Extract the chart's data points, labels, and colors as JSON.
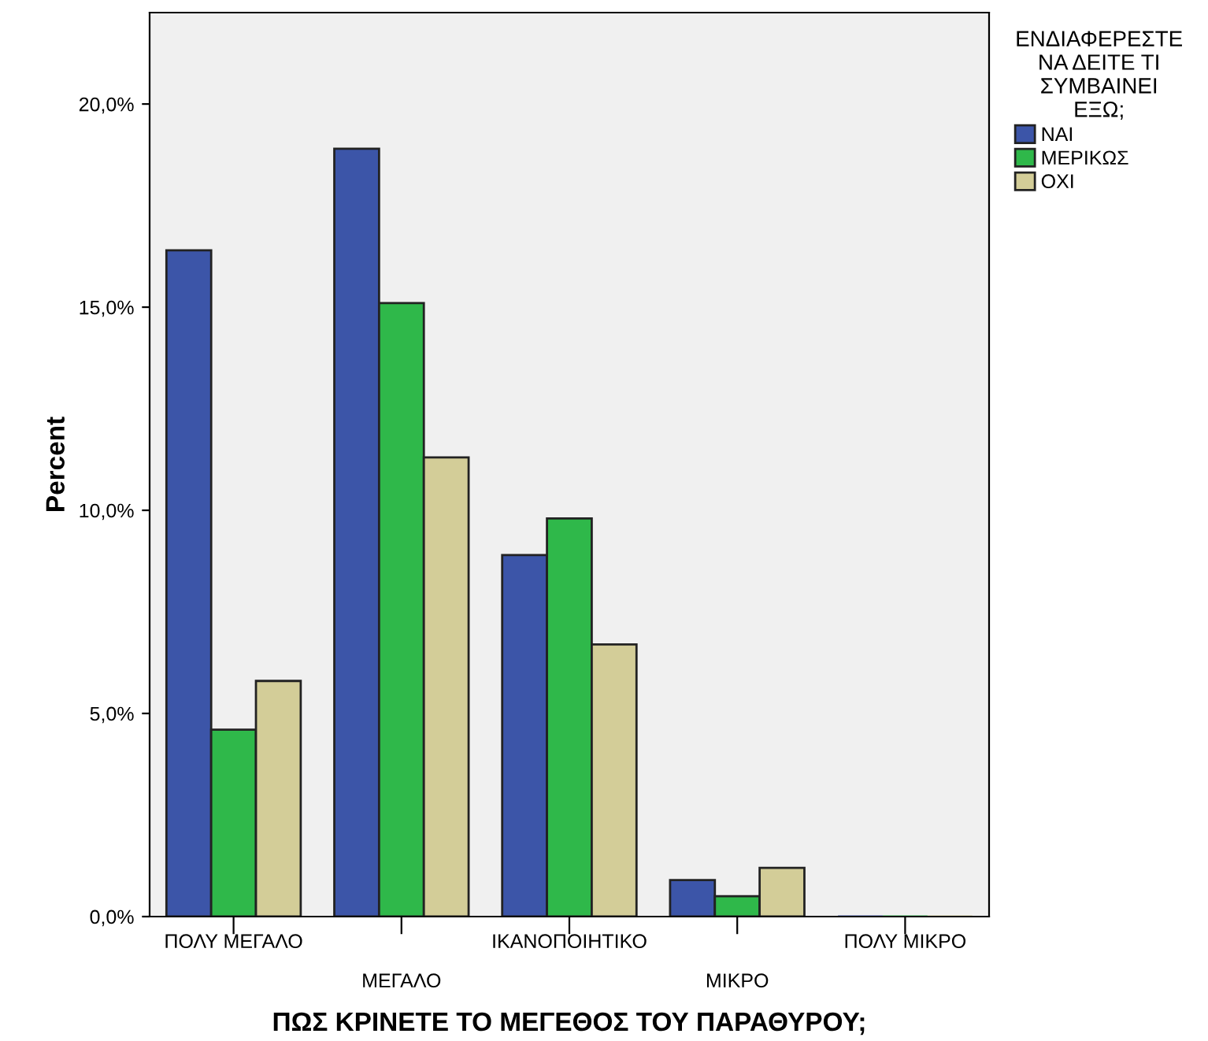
{
  "chart_data": {
    "type": "bar",
    "xlabel": "ΠΩΣ ΚΡΙΝΕΤΕ ΤΟ ΜΕΓΕΘΟΣ ΤΟΥ ΠΑΡΑΘΥΡΟΥ;",
    "ylabel": "Percent",
    "legend_title": "ΕΝΔΙΑΦΕΡΕΣΤΕ\nΝΑ ΔΕΙΤΕ ΤΙ\nΣΥΜΒΑΙΝΕΙ\nΕΞΩ;",
    "categories": [
      "ΠΟΛΥ ΜΕΓΑΛΟ",
      "ΜΕΓΑΛΟ",
      "ΙΚΑΝΟΠΟΙΗΤΙΚΟ",
      "ΜΙΚΡΟ",
      "ΠΟΛΥ ΜΙΚΡΟ"
    ],
    "series": [
      {
        "name": "ΝΑΙ",
        "color": "#3c55a8",
        "values": [
          16.4,
          18.9,
          8.9,
          0.9,
          0
        ]
      },
      {
        "name": "ΜΕΡΙΚΩΣ",
        "color": "#2fb84a",
        "values": [
          4.6,
          15.1,
          9.8,
          0.5,
          0
        ]
      },
      {
        "name": "ΟΧΙ",
        "color": "#d3cd98",
        "values": [
          5.8,
          11.3,
          6.7,
          1.2,
          0
        ]
      }
    ],
    "ylim": [
      0,
      22.25
    ],
    "yticks": [
      {
        "value": 0,
        "label": "0,0%"
      },
      {
        "value": 5,
        "label": "5,0%"
      },
      {
        "value": 10,
        "label": "10,0%"
      },
      {
        "value": 15,
        "label": "15,0%"
      },
      {
        "value": 20,
        "label": "20,0%"
      }
    ],
    "grid": false,
    "legend": "right"
  }
}
